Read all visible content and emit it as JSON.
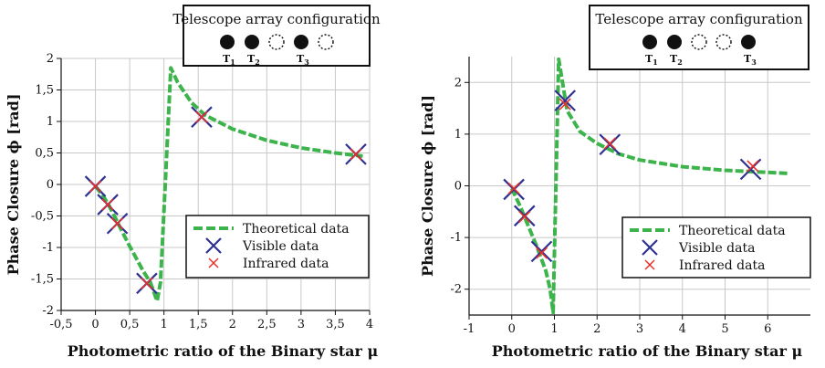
{
  "chart_data": [
    {
      "type": "scatter",
      "xlabel": "Photometric ratio of the Binary star μ",
      "ylabel": "Phase  Closure  ϕ [rad]",
      "xlim": [
        -0.5,
        4
      ],
      "ylim": [
        -2,
        2
      ],
      "xticks": [
        -0.5,
        0,
        0.5,
        1,
        1.5,
        2,
        2.5,
        3,
        3.5,
        4
      ],
      "xtick_labels": [
        "-0,5",
        "0",
        "0,5",
        "1",
        "1,5",
        "2",
        "2,5",
        "3",
        "3,5",
        "4"
      ],
      "yticks": [
        -2,
        -1.5,
        -1,
        -0.5,
        0,
        0.5,
        1,
        1.5,
        2
      ],
      "ytick_labels": [
        "-2",
        "-1,5",
        "-1",
        "-0,5",
        "0",
        "0,5",
        "1",
        "1,5",
        "2"
      ],
      "grid": true,
      "legend_position": "bottom-right",
      "series": [
        {
          "name": "Theoretical data",
          "style": "dashed-line",
          "color": "#3cb44b",
          "x": [
            0,
            0.1,
            0.2,
            0.3,
            0.4,
            0.5,
            0.6,
            0.7,
            0.8,
            0.9,
            0.95,
            1.1,
            1.2,
            1.4,
            1.6,
            2.0,
            2.5,
            3.0,
            3.5,
            3.9
          ],
          "y": [
            -0.03,
            -0.16,
            -0.34,
            -0.55,
            -0.77,
            -0.98,
            -1.18,
            -1.38,
            -1.55,
            -1.85,
            -1.55,
            1.85,
            1.62,
            1.3,
            1.1,
            0.88,
            0.7,
            0.58,
            0.5,
            0.45
          ]
        },
        {
          "name": "Visible data",
          "style": "x-marker",
          "color": "#2e3192",
          "x": [
            0.0,
            0.18,
            0.32,
            0.75,
            1.55,
            3.8
          ],
          "y": [
            -0.03,
            -0.32,
            -0.62,
            -1.57,
            1.07,
            0.48
          ]
        },
        {
          "name": "Infrared data",
          "style": "x-marker",
          "color": "#e8302a",
          "x": [
            0.0,
            0.18,
            0.32,
            0.75,
            1.55,
            3.8
          ],
          "y": [
            -0.03,
            -0.32,
            -0.62,
            -1.57,
            1.07,
            0.48
          ]
        }
      ],
      "config": {
        "title": "Telescope array configuration",
        "slots": [
          {
            "filled": true,
            "label": "T",
            "sub": "1"
          },
          {
            "filled": true,
            "label": "T",
            "sub": "2"
          },
          {
            "filled": false,
            "label": "",
            "sub": ""
          },
          {
            "filled": true,
            "label": "T",
            "sub": "3"
          },
          {
            "filled": false,
            "label": "",
            "sub": ""
          }
        ]
      }
    },
    {
      "type": "scatter",
      "xlabel": "Photometric ratio of the Binary star μ",
      "ylabel": "Phase  Closure  ϕ [rad]",
      "xlim": [
        -1,
        7
      ],
      "ylim": [
        -2.5,
        2.5
      ],
      "xticks": [
        -1,
        0,
        1,
        2,
        3,
        4,
        5,
        6
      ],
      "xtick_labels": [
        "-1",
        "0",
        "1",
        "2",
        "3",
        "4",
        "5",
        "6"
      ],
      "yticks": [
        -2,
        -1,
        0,
        1,
        2
      ],
      "ytick_labels": [
        "-2",
        "-1",
        "0",
        "1",
        "2"
      ],
      "grid": true,
      "legend_position": "bottom-right",
      "series": [
        {
          "name": "Theoretical data",
          "style": "dashed-line",
          "color": "#3cb44b",
          "x": [
            0,
            0.2,
            0.4,
            0.6,
            0.8,
            0.9,
            0.97,
            1.1,
            1.3,
            1.6,
            2.0,
            2.5,
            3.0,
            4.0,
            5.0,
            6.0,
            6.5
          ],
          "y": [
            -0.05,
            -0.4,
            -0.8,
            -1.2,
            -1.65,
            -2.0,
            -2.45,
            2.45,
            1.45,
            1.05,
            0.82,
            0.62,
            0.5,
            0.37,
            0.3,
            0.26,
            0.24
          ]
        },
        {
          "name": "Visible data",
          "style": "x-marker",
          "color": "#2e3192",
          "x": [
            0.05,
            0.3,
            0.7,
            1.25,
            2.3,
            5.6
          ],
          "y": [
            -0.07,
            -0.58,
            -1.27,
            1.65,
            0.8,
            0.32
          ]
        },
        {
          "name": "Infrared data",
          "style": "x-marker",
          "color": "#e8302a",
          "x": [
            0.05,
            0.3,
            0.7,
            1.25,
            2.3,
            5.65
          ],
          "y": [
            -0.05,
            -0.6,
            -1.3,
            1.58,
            0.82,
            0.38
          ]
        }
      ],
      "config": {
        "title": "Telescope array configuration",
        "slots": [
          {
            "filled": true,
            "label": "T",
            "sub": "1"
          },
          {
            "filled": true,
            "label": "T",
            "sub": "2"
          },
          {
            "filled": false,
            "label": "",
            "sub": ""
          },
          {
            "filled": false,
            "label": "",
            "sub": ""
          },
          {
            "filled": true,
            "label": "T",
            "sub": "3"
          }
        ]
      }
    }
  ]
}
